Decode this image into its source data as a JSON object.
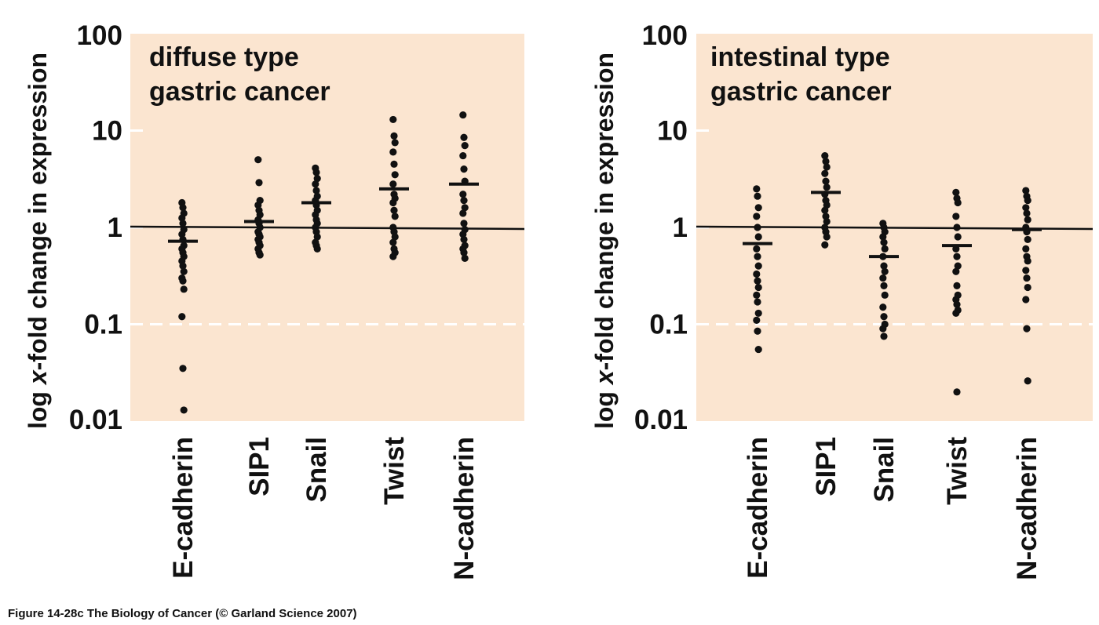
{
  "caption": "Figure 14-28c  The Biology of Cancer (© Garland Science 2007)",
  "colors": {
    "panel_bg": "#fbe5d0",
    "marks": "#111111",
    "dashed_line": "#ffffff"
  },
  "chart_data": [
    {
      "type": "scatter",
      "title_lines": [
        "diffuse type",
        "gastric cancer"
      ],
      "ylabel": "log x-fold change in expression",
      "ylabel_parts": [
        "log ",
        "x",
        "-fold change in expression"
      ],
      "yscale": "log",
      "ylim": [
        0.01,
        100
      ],
      "yticks": [
        "100",
        "10",
        "1",
        "0.1",
        "0.01"
      ],
      "reference_line": 1,
      "dashed_line": 0.1,
      "categories": [
        "E-cadherin",
        "SIP1",
        "Snail",
        "Twist",
        "N-cadherin"
      ],
      "median": [
        0.72,
        1.15,
        1.8,
        2.5,
        2.8
      ],
      "points": [
        [
          1.8,
          1.6,
          1.4,
          1.25,
          1.1,
          0.95,
          0.85,
          0.75,
          0.65,
          0.6,
          0.55,
          0.5,
          0.45,
          0.4,
          0.35,
          0.3,
          0.28,
          0.23,
          0.12,
          0.035,
          0.013
        ],
        [
          5.0,
          2.9,
          1.9,
          1.7,
          1.5,
          1.35,
          1.2,
          1.1,
          1.0,
          0.9,
          0.85,
          0.8,
          0.75,
          0.7,
          0.65,
          0.6,
          0.55,
          0.52
        ],
        [
          4.1,
          3.7,
          3.2,
          2.8,
          2.4,
          2.1,
          1.9,
          1.7,
          1.5,
          1.35,
          1.2,
          1.1,
          1.0,
          0.9,
          0.8,
          0.7,
          0.65,
          0.6
        ],
        [
          13,
          8.8,
          7.5,
          6.0,
          4.5,
          3.5,
          2.8,
          2.2,
          2.0,
          1.8,
          1.5,
          1.3,
          1.0,
          0.9,
          0.8,
          0.7,
          0.6,
          0.55,
          0.5
        ],
        [
          14.5,
          8.5,
          7.0,
          5.5,
          4.0,
          3.0,
          2.2,
          1.9,
          1.6,
          1.4,
          1.1,
          0.95,
          0.85,
          0.75,
          0.65,
          0.6,
          0.55,
          0.48
        ]
      ]
    },
    {
      "type": "scatter",
      "title_lines": [
        "intestinal type",
        "gastric cancer"
      ],
      "ylabel": "log x-fold change in expression",
      "ylabel_parts": [
        "log ",
        "x",
        "-fold change in expression"
      ],
      "yscale": "log",
      "ylim": [
        0.01,
        100
      ],
      "yticks": [
        "100",
        "10",
        "1",
        "0.1",
        "0.01"
      ],
      "reference_line": 1,
      "dashed_line": 0.1,
      "categories": [
        "E-cadherin",
        "SIP1",
        "Snail",
        "Twist",
        "N-cadherin"
      ],
      "median": [
        0.68,
        2.3,
        0.5,
        0.65,
        0.95
      ],
      "points": [
        [
          2.5,
          2.1,
          1.6,
          1.3,
          1.0,
          0.8,
          0.6,
          0.5,
          0.4,
          0.33,
          0.28,
          0.24,
          0.2,
          0.17,
          0.13,
          0.11,
          0.085,
          0.055
        ],
        [
          5.5,
          4.8,
          4.2,
          3.6,
          3.0,
          2.6,
          2.2,
          1.9,
          1.7,
          1.5,
          1.3,
          1.15,
          1.0,
          0.9,
          0.8,
          0.66
        ],
        [
          1.1,
          1.0,
          0.9,
          0.8,
          0.7,
          0.6,
          0.5,
          0.4,
          0.35,
          0.3,
          0.25,
          0.2,
          0.15,
          0.12,
          0.1,
          0.09,
          0.075
        ],
        [
          2.3,
          2.0,
          1.8,
          1.3,
          1.0,
          0.8,
          0.6,
          0.5,
          0.4,
          0.35,
          0.25,
          0.2,
          0.18,
          0.16,
          0.14,
          0.13,
          0.02
        ],
        [
          2.4,
          2.1,
          1.9,
          1.6,
          1.4,
          1.2,
          1.0,
          0.9,
          0.75,
          0.6,
          0.5,
          0.45,
          0.36,
          0.3,
          0.24,
          0.18,
          0.09,
          0.026
        ]
      ]
    }
  ]
}
